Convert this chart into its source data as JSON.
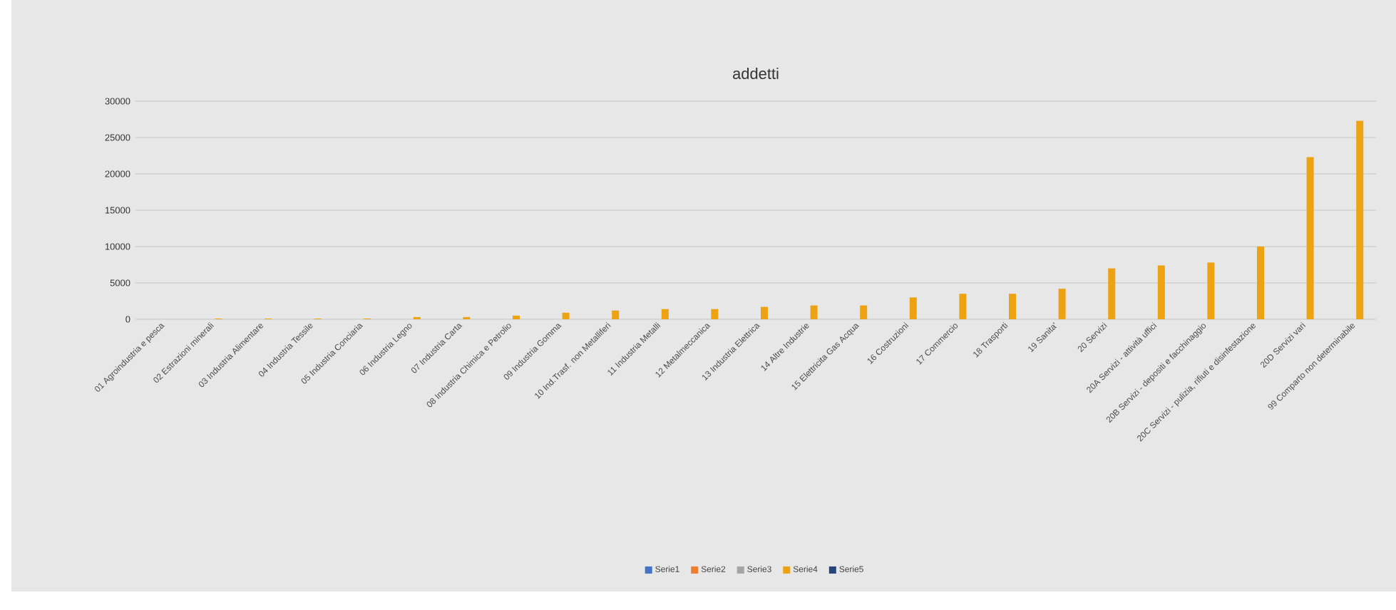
{
  "chart_data": {
    "type": "bar",
    "title": "addetti",
    "categories": [
      "01 Agroindustria e pesca",
      "02 Estrazioni minerali",
      "03 Industria Alimentare",
      "04 Industria Tessile",
      "05 Industria Conciaria",
      "06 Industria Legno",
      "07 Industria Carta",
      "08 Industria Chimica e Petrolio",
      "09 Industria Gomma",
      "10 Ind.Trasf. non Metalliferi",
      "11 Industria Metalli",
      "12 Metalmeccanica",
      "13 Industria Elettrica",
      "14 Altre Industrie",
      "15 Elettricita Gas Acqua",
      "16 Costruzioni",
      "17 Commercio",
      "18 Trasporti",
      "19 Sanita'",
      "20 Servizi",
      "20A Servizi - attività uffici",
      "20B Servizi - depositi e facchinaggio",
      "20C Servizi - pulizia, rifiuti e disinfestazione",
      "20D Servizi vari",
      "99 Comparto non determinabile"
    ],
    "series": [
      {
        "name": "Serie1",
        "color": "#4472c4",
        "values": [
          null,
          null,
          null,
          null,
          null,
          null,
          null,
          null,
          null,
          null,
          null,
          null,
          null,
          null,
          null,
          null,
          null,
          null,
          null,
          null,
          null,
          null,
          null,
          null,
          null
        ]
      },
      {
        "name": "Serie2",
        "color": "#ed7d31",
        "values": [
          null,
          null,
          null,
          null,
          null,
          null,
          null,
          null,
          null,
          null,
          null,
          null,
          null,
          null,
          null,
          null,
          null,
          null,
          null,
          null,
          null,
          null,
          null,
          null,
          null
        ]
      },
      {
        "name": "Serie3",
        "color": "#a5a5a5",
        "values": [
          null,
          null,
          null,
          null,
          null,
          null,
          null,
          null,
          null,
          null,
          null,
          null,
          null,
          null,
          null,
          null,
          null,
          null,
          null,
          null,
          null,
          null,
          null,
          null,
          null
        ]
      },
      {
        "name": "Serie4",
        "color": "#eda212",
        "values": [
          0,
          100,
          100,
          100,
          100,
          300,
          300,
          500,
          900,
          1200,
          1400,
          1400,
          1700,
          1900,
          1900,
          3000,
          3500,
          3500,
          4200,
          7000,
          7400,
          7800,
          10000,
          22300,
          27300
        ]
      },
      {
        "name": "Serie5",
        "color": "#264478",
        "values": [
          null,
          null,
          null,
          null,
          null,
          null,
          null,
          null,
          null,
          null,
          null,
          null,
          null,
          null,
          null,
          null,
          null,
          null,
          null,
          null,
          null,
          null,
          null,
          null,
          null
        ]
      }
    ],
    "ylim": [
      0,
      30000
    ],
    "yticks": [
      0,
      5000,
      10000,
      15000,
      20000,
      25000,
      30000
    ],
    "grid": "y",
    "legend": "bottom"
  }
}
